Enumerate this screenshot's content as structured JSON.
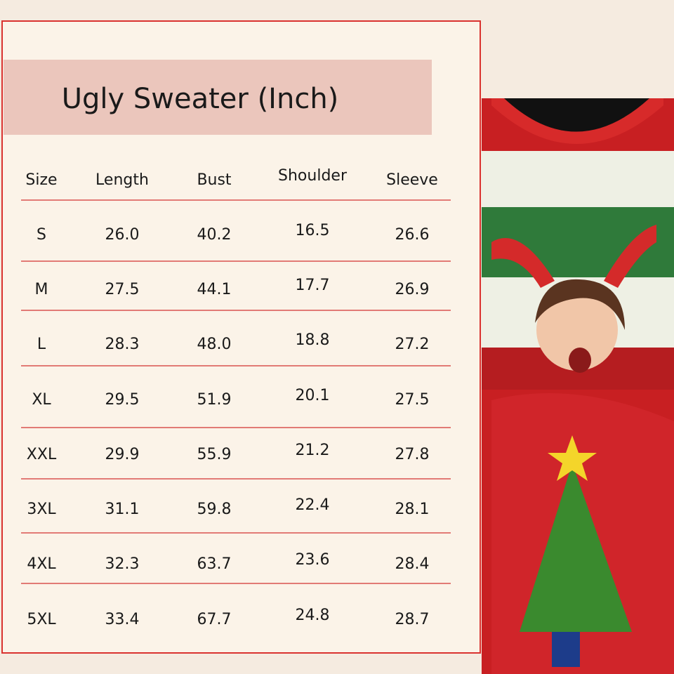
{
  "header": {
    "title": "Ugly Sweater (Inch)"
  },
  "table": {
    "columns": [
      "Size",
      "Length",
      "Bust",
      "Shoulder",
      "Sleeve"
    ],
    "rows": [
      [
        "S",
        "26.0",
        "40.2",
        "16.5",
        "26.6"
      ],
      [
        "M",
        "27.5",
        "44.1",
        "17.7",
        "26.9"
      ],
      [
        "L",
        "28.3",
        "48.0",
        "18.8",
        "27.2"
      ],
      [
        "XL",
        "29.5",
        "51.9",
        "20.1",
        "27.5"
      ],
      [
        "XXL",
        "29.9",
        "55.9",
        "21.2",
        "27.8"
      ],
      [
        "3XL",
        "31.1",
        "59.8",
        "22.4",
        "28.1"
      ],
      [
        "4XL",
        "32.3",
        "63.7",
        "23.6",
        "28.4"
      ],
      [
        "5XL",
        "33.4",
        "67.7",
        "24.8",
        "28.7"
      ]
    ]
  }
}
